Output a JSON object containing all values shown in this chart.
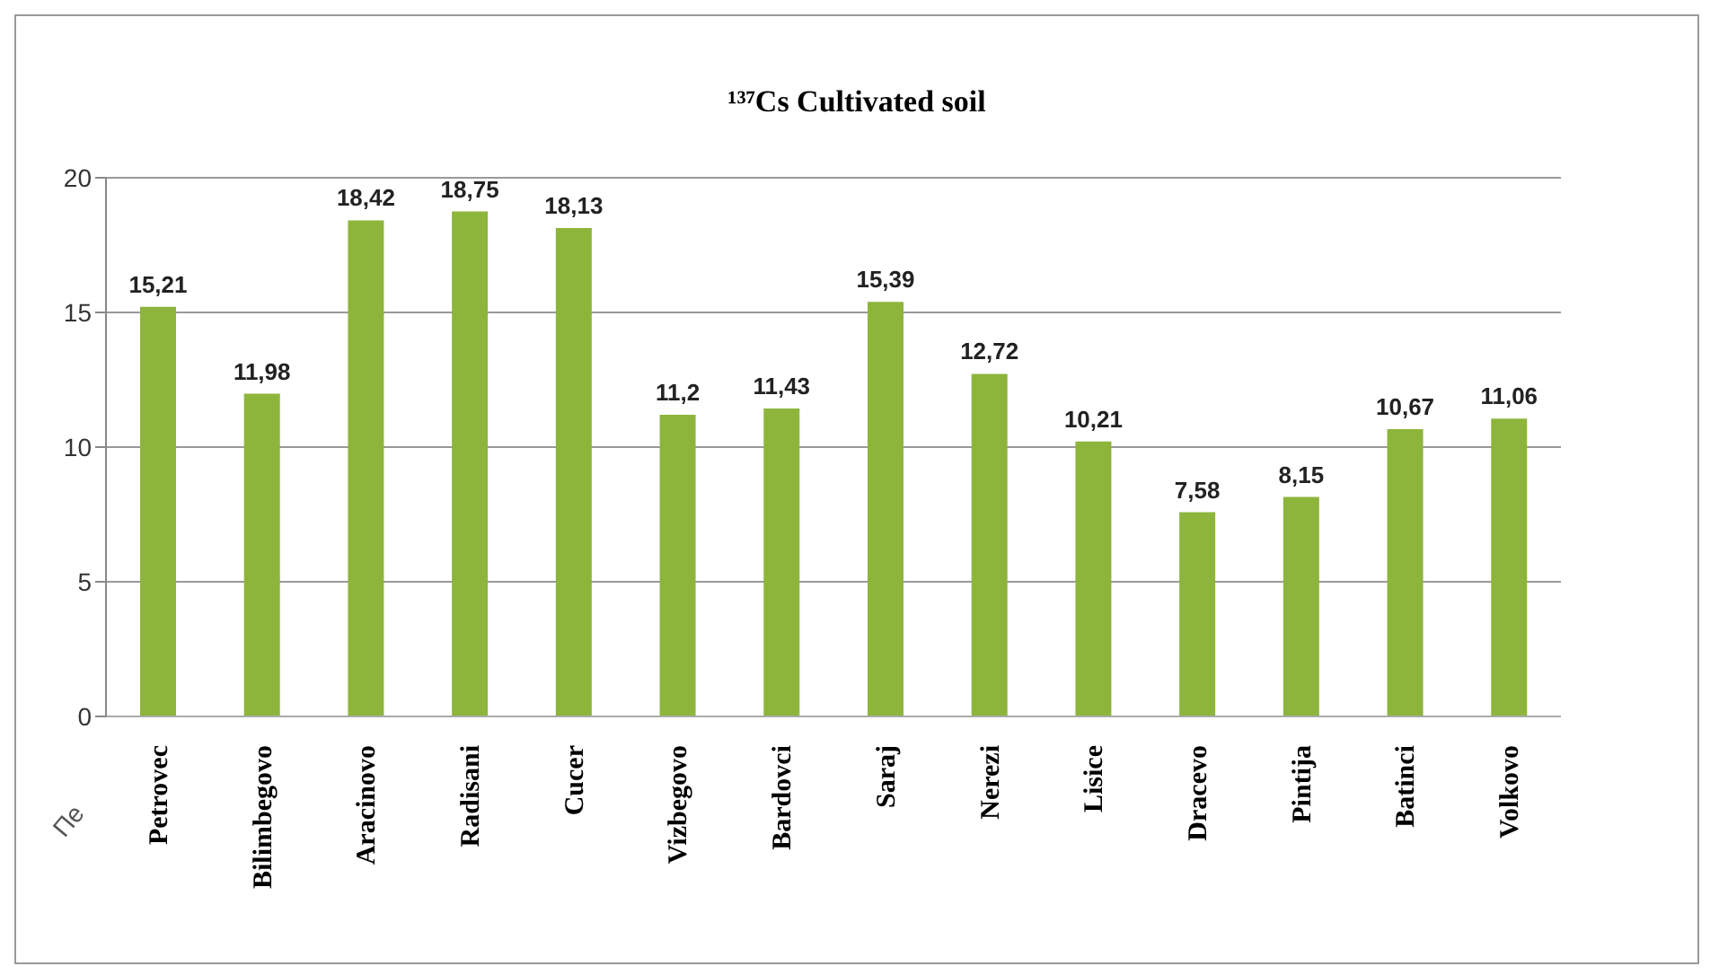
{
  "chart_data": {
    "type": "bar",
    "title": "¹³⁷Cs Cultivated soil",
    "categories": [
      "Petrovec",
      "Bilimbegovo",
      "Aracinovo",
      "Radisani",
      "Cucer",
      "Vizbegovo",
      "Bardovci",
      "Saraj",
      "Nerezi",
      "Lisice",
      "Dracevo",
      "Pintija",
      "Batinci",
      "Volkovo"
    ],
    "values": [
      15.21,
      11.98,
      18.42,
      18.75,
      18.13,
      11.2,
      11.43,
      15.39,
      12.72,
      10.21,
      7.58,
      8.15,
      10.67,
      11.06
    ],
    "value_labels": [
      "15,21",
      "11,98",
      "18,42",
      "18,75",
      "18,13",
      "11,2",
      "11,43",
      "15,39",
      "12,72",
      "10,21",
      "7,58",
      "8,15",
      "10,67",
      "11,06"
    ],
    "color": "#8db53c",
    "ylim": [
      0,
      20
    ],
    "yticks": [
      0,
      5,
      10,
      15,
      20
    ],
    "grid": "y",
    "annotations": [
      "Пе"
    ]
  }
}
